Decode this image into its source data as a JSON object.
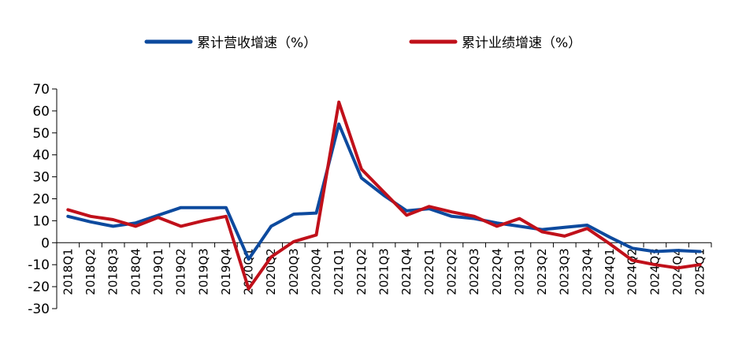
{
  "chart_data": {
    "type": "line",
    "categories": [
      "2018Q1",
      "2018Q2",
      "2018Q3",
      "2018Q4",
      "2019Q1",
      "2019Q2",
      "2019Q3",
      "2019Q4",
      "2020Q1",
      "2020Q2",
      "2020Q3",
      "2020Q4",
      "2021Q1",
      "2021Q2",
      "2021Q3",
      "2021Q4",
      "2022Q1",
      "2022Q2",
      "2022Q3",
      "2022Q4",
      "2023Q1",
      "2023Q2",
      "2023Q3",
      "2023Q4",
      "2024Q1",
      "2024Q2",
      "2024Q3",
      "2024Q4",
      "2025Q1"
    ],
    "series": [
      {
        "name": "累计营收增速（%）",
        "color": "#0d4a9e",
        "values": [
          12,
          9.5,
          7.5,
          9,
          12.5,
          16,
          16,
          16,
          -7.5,
          7.5,
          13,
          13.5,
          54,
          29.5,
          21.5,
          14.5,
          15.5,
          12,
          11,
          9,
          7.5,
          6,
          7,
          8,
          2.5,
          -2.5,
          -4,
          -3.5,
          -4
        ]
      },
      {
        "name": "累计业绩增速（%）",
        "color": "#c0101a",
        "values": [
          15,
          12,
          10.5,
          7.5,
          11.5,
          7.5,
          10,
          12,
          -21,
          -6.5,
          0.5,
          3.5,
          64,
          33.5,
          23,
          12.5,
          16.5,
          14,
          12,
          7.5,
          11,
          5,
          3,
          6.5,
          -0.5,
          -8,
          -10,
          -11.5,
          -10
        ]
      }
    ],
    "ylim": [
      -30,
      70
    ],
    "yticks": [
      -30,
      -20,
      -10,
      0,
      10,
      20,
      30,
      40,
      50,
      60,
      70
    ],
    "legend_position": "top",
    "grid": false
  }
}
